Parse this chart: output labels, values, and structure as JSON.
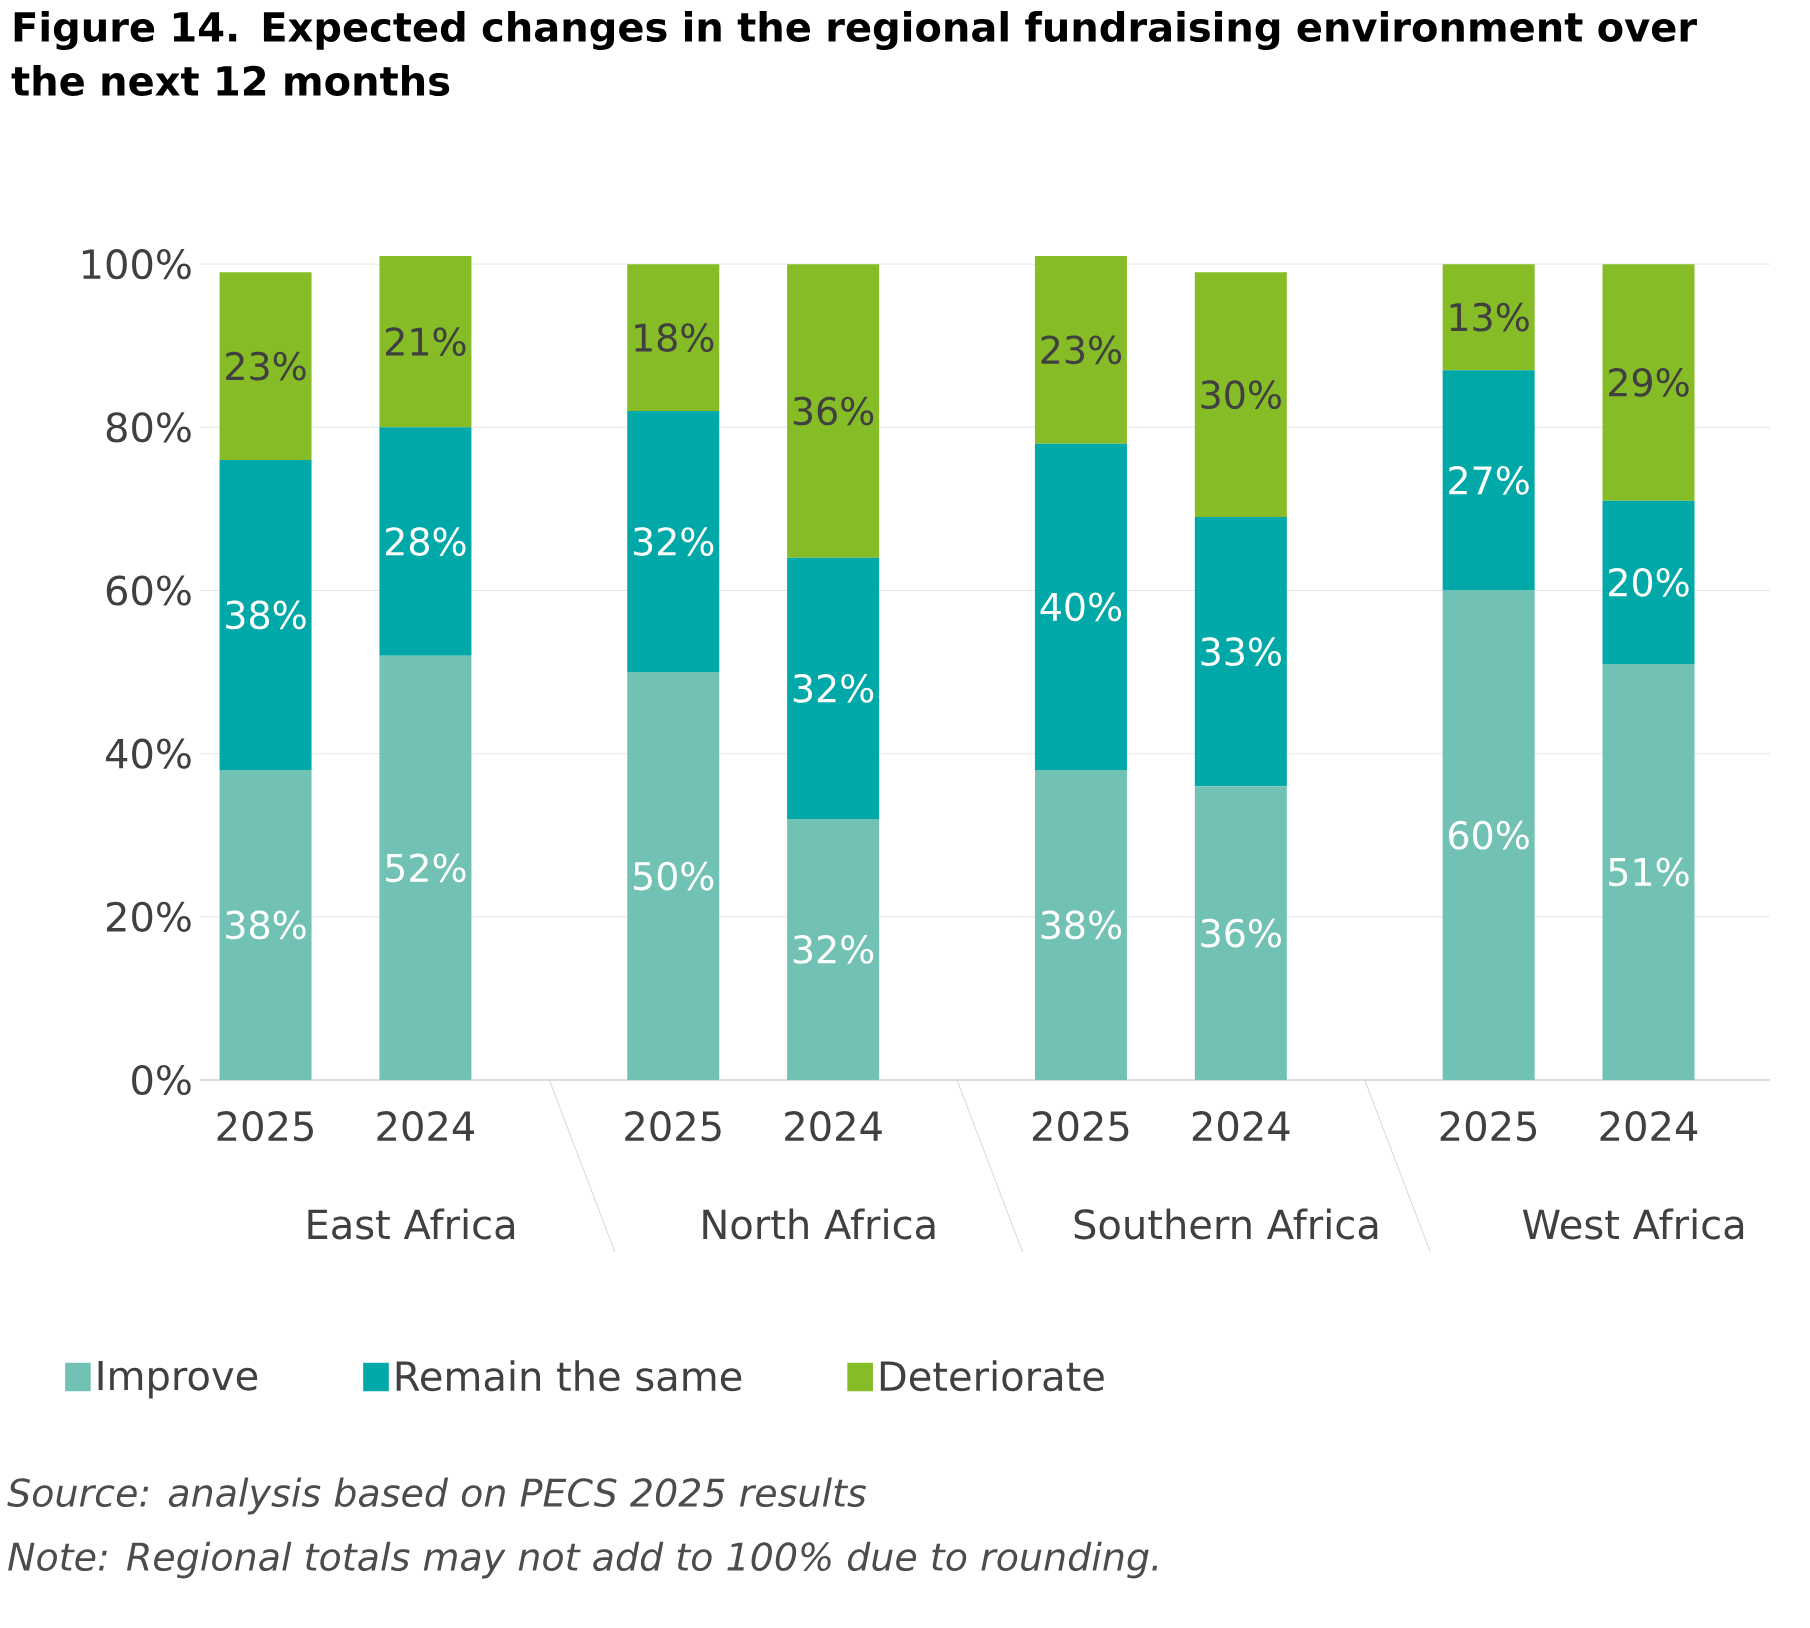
{
  "chart_data": {
    "type": "bar",
    "stacked": true,
    "title": "Figure 14. Expected changes in the regional fundraising environment over the next 12 months",
    "categories": [
      "2025",
      "2024",
      "2025",
      "2024",
      "2025",
      "2024",
      "2025",
      "2024"
    ],
    "series": [
      {
        "name": "Improve",
        "color": "#71c2b4",
        "values": [
          38,
          52,
          50,
          32,
          38,
          36,
          60,
          51
        ],
        "value_labels": [
          "38%",
          "52%",
          "50%",
          "32%",
          "38%",
          "36%",
          "60%",
          "51%"
        ]
      },
      {
        "name": "Remain the same",
        "color": "#00a8a8",
        "values": [
          38,
          28,
          32,
          32,
          40,
          33,
          27,
          20
        ],
        "value_labels": [
          "38%",
          "28%",
          "32%",
          "32%",
          "40%",
          "33%",
          "27%",
          "20%"
        ]
      },
      {
        "name": "Deteriorate",
        "color": "#86bc25",
        "values": [
          23,
          21,
          18,
          36,
          23,
          30,
          13,
          29
        ],
        "value_labels": [
          "23%",
          "21%",
          "18%",
          "36%",
          "23%",
          "30%",
          "13%",
          "29%"
        ]
      }
    ],
    "ylim": [
      0,
      101
    ],
    "yticks": [
      {
        "value": 0,
        "label": "0%"
      },
      {
        "value": 20,
        "label": "20%"
      },
      {
        "value": 40,
        "label": "40%"
      },
      {
        "value": 60,
        "label": "60%"
      },
      {
        "value": 80,
        "label": "80%"
      },
      {
        "value": 100,
        "label": "100%"
      }
    ],
    "grid": "y",
    "legend": "bottom",
    "annotations": [
      "East Africa",
      "North Africa",
      "Southern Africa",
      "West Africa",
      "Source: analysis based on PECS 2025 results",
      "Note: Regional totals may not add to 100% due to rounding."
    ]
  }
}
